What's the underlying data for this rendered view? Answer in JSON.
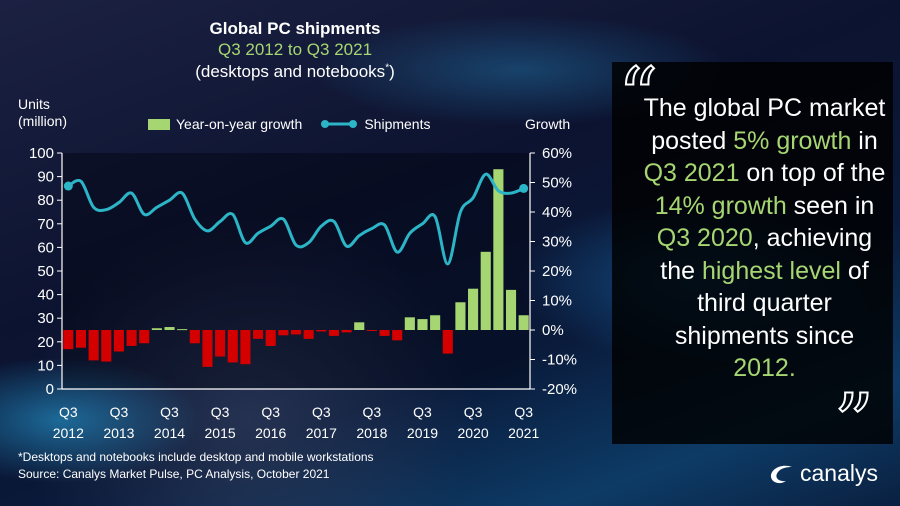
{
  "chart_data": {
    "type": "bar+line",
    "title": "Global PC shipments",
    "subtitle": "Q3 2012 to Q3 2021",
    "subtitle2": "(desktops and notebooks",
    "subtitle2_mark": "*",
    "subtitle2_end": ")",
    "ylabel_left": [
      "Units",
      "(million)"
    ],
    "ylabel_right": "Growth",
    "ylim_left": [
      0,
      100
    ],
    "ylim_right": [
      -20,
      60
    ],
    "left_ticks": [
      "0",
      "10",
      "20",
      "30",
      "40",
      "50",
      "60",
      "70",
      "80",
      "90",
      "100"
    ],
    "right_ticks": [
      "-20%",
      "-10%",
      "0%",
      "10%",
      "20%",
      "30%",
      "40%",
      "50%",
      "60%"
    ],
    "x_tick_labels": [
      [
        "Q3",
        "2012"
      ],
      [
        "Q3",
        "2013"
      ],
      [
        "Q3",
        "2014"
      ],
      [
        "Q3",
        "2015"
      ],
      [
        "Q3",
        "2016"
      ],
      [
        "Q3",
        "2017"
      ],
      [
        "Q3",
        "2018"
      ],
      [
        "Q3",
        "2019"
      ],
      [
        "Q3",
        "2020"
      ],
      [
        "Q3",
        "2021"
      ]
    ],
    "quarters": [
      "Q3 2012",
      "Q4 2012",
      "Q1 2013",
      "Q2 2013",
      "Q3 2013",
      "Q4 2013",
      "Q1 2014",
      "Q2 2014",
      "Q3 2014",
      "Q4 2014",
      "Q1 2015",
      "Q2 2015",
      "Q3 2015",
      "Q4 2015",
      "Q1 2016",
      "Q2 2016",
      "Q3 2016",
      "Q4 2016",
      "Q1 2017",
      "Q2 2017",
      "Q3 2017",
      "Q4 2017",
      "Q1 2018",
      "Q2 2018",
      "Q3 2018",
      "Q4 2018",
      "Q1 2019",
      "Q2 2019",
      "Q3 2019",
      "Q4 2019",
      "Q1 2020",
      "Q2 2020",
      "Q3 2020",
      "Q4 2020",
      "Q1 2021",
      "Q2 2021",
      "Q3 2021"
    ],
    "series": [
      {
        "name": "Year-on-year growth",
        "axis": "right",
        "unit": "%",
        "color_positive": "#a6d672",
        "color_negative": "#d40000",
        "values": [
          -6.5,
          -6,
          -10.3,
          -10.7,
          -7.3,
          -5.4,
          -4.5,
          0.6,
          1,
          0.3,
          -4.5,
          -12.5,
          -9,
          -11,
          -11.6,
          -3,
          -5.4,
          -1.8,
          -1.5,
          -3,
          -0.5,
          -2,
          -0.8,
          2.6,
          -0.3,
          -2,
          -3.5,
          4.3,
          3.7,
          5,
          -8,
          9.4,
          14,
          26.5,
          54.5,
          13.6,
          5
        ]
      },
      {
        "name": "Shipments",
        "axis": "left",
        "unit": "million",
        "color": "#2cb5c6",
        "values": [
          86,
          88,
          77,
          76,
          79,
          83,
          74,
          77,
          80,
          83,
          72,
          67,
          71,
          74,
          62,
          66,
          69,
          72,
          61,
          62,
          69,
          71,
          60.5,
          65,
          68,
          69.5,
          58,
          66,
          70,
          73,
          53,
          75,
          81,
          91,
          84,
          83,
          85
        ]
      }
    ],
    "grid": false,
    "legend_placement": "top"
  },
  "footnote": "*Desktops and notebooks  include desktop and mobile workstations",
  "source": "Source: Canalys Market Pulse, PC Analysis, October 2021",
  "quote": {
    "open_mark": "“",
    "close_mark": "”",
    "segments": [
      {
        "text": "The global PC market posted ",
        "hl": false
      },
      {
        "text": "5% growth",
        "hl": true
      },
      {
        "text": " in ",
        "hl": false
      },
      {
        "text": "Q3 2021",
        "hl": true
      },
      {
        "text": " on top of the ",
        "hl": false
      },
      {
        "text": "14% growth",
        "hl": true
      },
      {
        "text": " seen in ",
        "hl": false
      },
      {
        "text": "Q3 2020",
        "hl": true
      },
      {
        "text": ", achieving the ",
        "hl": false
      },
      {
        "text": "highest level",
        "hl": true
      },
      {
        "text": " of third quarter shipments since ",
        "hl": false
      },
      {
        "text": "2012.",
        "hl": true
      }
    ]
  },
  "logo": {
    "text": "canalys",
    "icon": "canalys-swoosh-icon"
  },
  "colors": {
    "accent": "#a6d672",
    "negative": "#d40000",
    "line": "#2cb5c6"
  }
}
